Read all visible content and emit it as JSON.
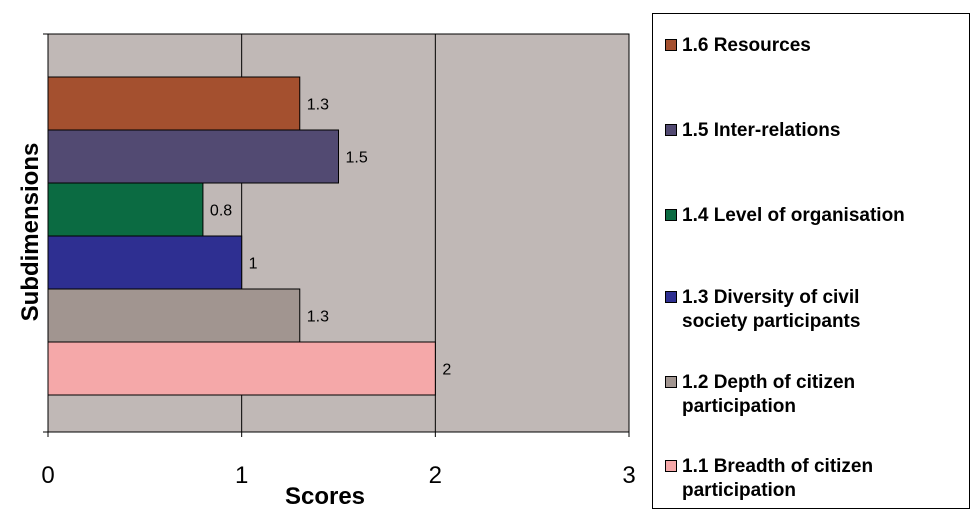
{
  "chart_data": {
    "type": "bar",
    "orientation": "horizontal",
    "xlabel": "Scores",
    "ylabel": "Subdimensions",
    "xlim": [
      0,
      3
    ],
    "x_ticks": [
      "0",
      "1",
      "2",
      "3"
    ],
    "grid": "vertical",
    "legend_position": "right",
    "plot_background": "#C0B8B6",
    "categories": [
      "1.1 Breadth of citizen participation",
      "1.2 Depth of citizen participation",
      "1.3 Diversity of civil society participants",
      "1.4 Level of organisation",
      "1.5 Inter-relations",
      "1.6 Resources"
    ],
    "values": [
      2,
      1.3,
      1,
      0.8,
      1.5,
      1.3
    ],
    "value_labels": [
      "2",
      "1.3",
      "1",
      "0.8",
      "1.5",
      "1.3"
    ],
    "colors": [
      "#F5A8A9",
      "#A19590",
      "#2E2F91",
      "#0B6B42",
      "#524A72",
      "#A4502F"
    ]
  },
  "legend": {
    "items": [
      {
        "label": "1.6 Resources",
        "color": "#A4502F"
      },
      {
        "label": "1.5 Inter-relations",
        "color": "#524A72"
      },
      {
        "label": "1.4 Level of organisation",
        "color": "#0B6B42"
      },
      {
        "label": "1.3 Diversity of civil\nsociety participants",
        "color": "#2E2F91"
      },
      {
        "label": "1.2 Depth of citizen\nparticipation",
        "color": "#A19590"
      },
      {
        "label": "1.1 Breadth of citizen\nparticipation",
        "color": "#F5A8A9"
      }
    ]
  }
}
